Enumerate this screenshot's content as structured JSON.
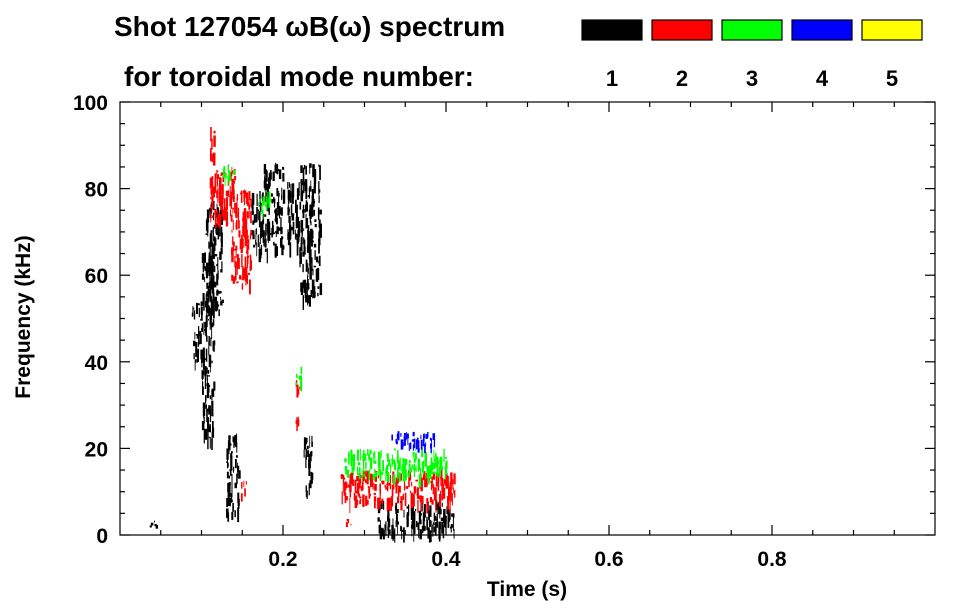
{
  "chart_data": {
    "type": "heatmap",
    "title_line1": "Shot 127054 ωB(ω) spectrum",
    "title_line2": "for toroidal mode number:",
    "xlabel": "Time (s)",
    "ylabel": "Frequency (kHz)",
    "xlim": [
      0.0,
      1.0
    ],
    "ylim": [
      0,
      100
    ],
    "x_ticks": [
      0.2,
      0.4,
      0.6,
      0.8
    ],
    "x_tick_labels": [
      "0.2",
      "0.4",
      "0.6",
      "0.8"
    ],
    "y_ticks": [
      0,
      20,
      40,
      60,
      80,
      100
    ],
    "y_tick_labels": [
      "0",
      "20",
      "40",
      "60",
      "80",
      "100"
    ],
    "legend": [
      {
        "label": "1",
        "color": "#000000"
      },
      {
        "label": "2",
        "color": "#ff0000"
      },
      {
        "label": "3",
        "color": "#00ff00"
      },
      {
        "label": "4",
        "color": "#0000ff"
      },
      {
        "label": "5",
        "color": "#ffff00"
      }
    ],
    "regions": [
      {
        "mode": "1",
        "t": [
          0.035,
          0.048
        ],
        "f": [
          2,
          4
        ]
      },
      {
        "mode": "1",
        "t": [
          0.088,
          0.1
        ],
        "f": [
          40,
          54
        ]
      },
      {
        "mode": "1",
        "t": [
          0.1,
          0.115
        ],
        "f": [
          22,
          66
        ]
      },
      {
        "mode": "1",
        "t": [
          0.105,
          0.125
        ],
        "f": [
          52,
          78
        ]
      },
      {
        "mode": "1",
        "t": [
          0.13,
          0.145
        ],
        "f": [
          5,
          24
        ]
      },
      {
        "mode": "1",
        "t": [
          0.16,
          0.2
        ],
        "f": [
          66,
          80
        ]
      },
      {
        "mode": "1",
        "t": [
          0.175,
          0.2
        ],
        "f": [
          80,
          86
        ]
      },
      {
        "mode": "1",
        "t": [
          0.205,
          0.22
        ],
        "f": [
          66,
          82
        ]
      },
      {
        "mode": "1",
        "t": [
          0.22,
          0.245
        ],
        "f": [
          55,
          86
        ]
      },
      {
        "mode": "1",
        "t": [
          0.225,
          0.235
        ],
        "f": [
          10,
          24
        ]
      },
      {
        "mode": "1",
        "t": [
          0.315,
          0.41
        ],
        "f": [
          1,
          8
        ]
      },
      {
        "mode": "2",
        "t": [
          0.11,
          0.115
        ],
        "f": [
          88,
          96
        ]
      },
      {
        "mode": "2",
        "t": [
          0.11,
          0.14
        ],
        "f": [
          73,
          85
        ]
      },
      {
        "mode": "2",
        "t": [
          0.135,
          0.16
        ],
        "f": [
          58,
          80
        ]
      },
      {
        "mode": "2",
        "t": [
          0.148,
          0.155
        ],
        "f": [
          9,
          13
        ]
      },
      {
        "mode": "2",
        "t": [
          0.215,
          0.22
        ],
        "f": [
          26,
          36
        ]
      },
      {
        "mode": "2",
        "t": [
          0.27,
          0.41
        ],
        "f": [
          8,
          15
        ]
      },
      {
        "mode": "2",
        "t": [
          0.275,
          0.285
        ],
        "f": [
          2,
          4
        ]
      },
      {
        "mode": "3",
        "t": [
          0.125,
          0.14
        ],
        "f": [
          82,
          86
        ]
      },
      {
        "mode": "3",
        "t": [
          0.17,
          0.185
        ],
        "f": [
          75,
          80
        ]
      },
      {
        "mode": "3",
        "t": [
          0.215,
          0.225
        ],
        "f": [
          35,
          39
        ]
      },
      {
        "mode": "3",
        "t": [
          0.275,
          0.4
        ],
        "f": [
          14,
          20
        ]
      },
      {
        "mode": "4",
        "t": [
          0.33,
          0.385
        ],
        "f": [
          20,
          24
        ]
      }
    ]
  }
}
